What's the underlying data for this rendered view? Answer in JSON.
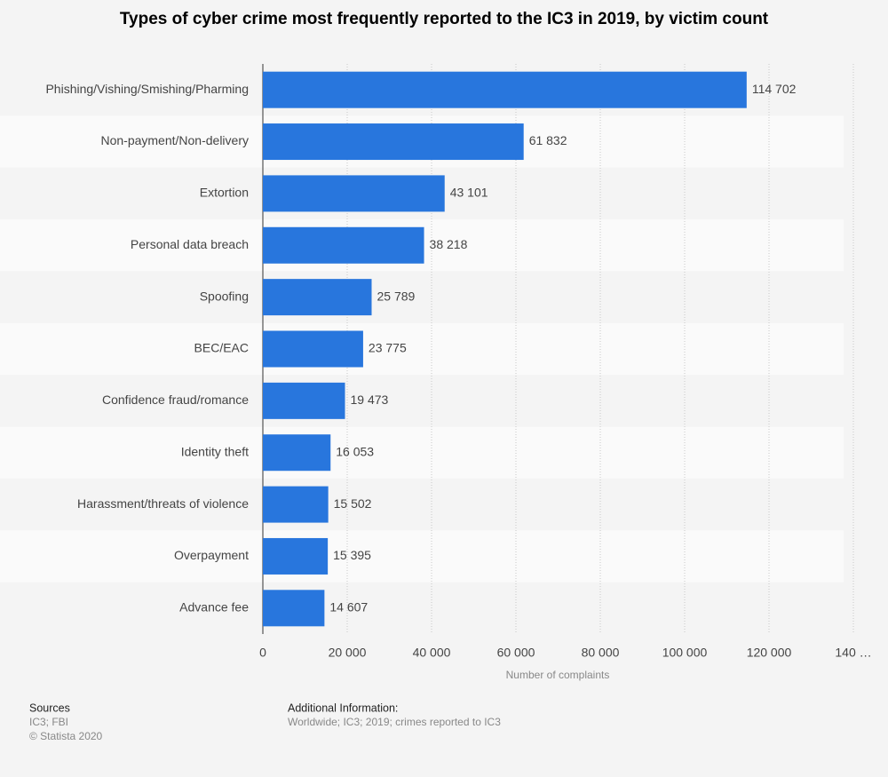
{
  "chart_data": {
    "type": "barh",
    "title": "Types of cyber crime most frequently reported to the IC3 in 2019, by victim count",
    "categories": [
      "Phishing/Vishing/Smishing/Pharming",
      "Non-payment/Non-delivery",
      "Extortion",
      "Personal data breach",
      "Spoofing",
      "BEC/EAC",
      "Confidence fraud/romance",
      "Identity theft",
      "Harassment/threats of violence",
      "Overpayment",
      "Advance fee"
    ],
    "values": [
      114702,
      61832,
      43101,
      38218,
      25789,
      23775,
      19473,
      16053,
      15502,
      15395,
      14607
    ],
    "value_labels": [
      "114 702",
      "61 832",
      "43 101",
      "38 218",
      "25 789",
      "23 775",
      "19 473",
      "16 053",
      "15 502",
      "15 395",
      "14 607"
    ],
    "color": "#2876dd",
    "xlabel": "Number of complaints",
    "xlim": [
      0,
      140000
    ],
    "xticks": [
      0,
      {
        "value": 20000,
        "label": "20 000"
      },
      {
        "value": 40000,
        "label": "40 000"
      },
      {
        "value": 60000,
        "label": "60 000"
      },
      {
        "value": 80000,
        "label": "80 000"
      },
      {
        "value": 100000,
        "label": "100 000"
      },
      {
        "value": 120000,
        "label": "120 000"
      },
      {
        "value": 140000,
        "label": "140 …"
      }
    ],
    "grid": true
  },
  "footer": {
    "sources_title": "Sources",
    "sources": "IC3; FBI",
    "copyright": "© Statista 2020",
    "additional_title": "Additional Information:",
    "additional": "Worldwide; IC3; 2019; crimes reported to IC3"
  }
}
